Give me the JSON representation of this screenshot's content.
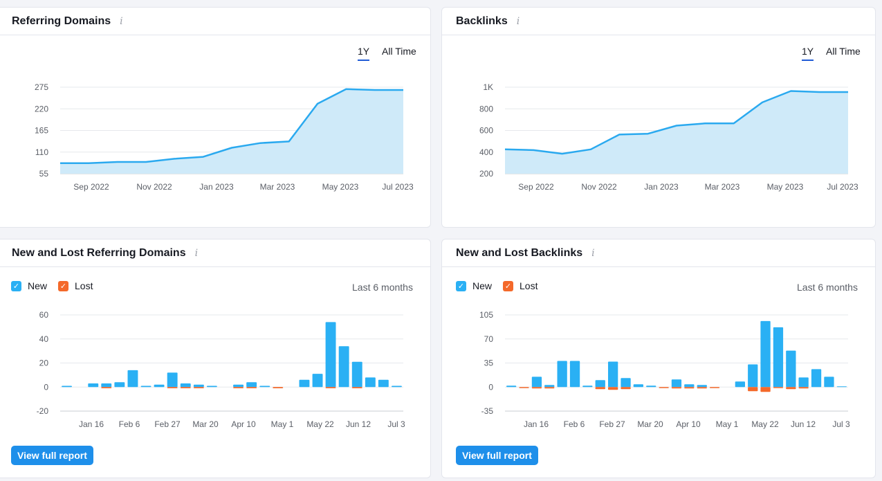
{
  "cards": {
    "referring_domains": {
      "title": "Referring Domains",
      "period_options": [
        "1Y",
        "All Time"
      ],
      "active_period": "1Y"
    },
    "backlinks": {
      "title": "Backlinks",
      "period_options": [
        "1Y",
        "All Time"
      ],
      "active_period": "1Y"
    },
    "new_lost_domains": {
      "title": "New and Lost Referring Domains",
      "legend_new": "New",
      "legend_lost": "Lost",
      "range": "Last 6 months",
      "button": "View full report"
    },
    "new_lost_backlinks": {
      "title": "New and Lost Backlinks",
      "legend_new": "New",
      "legend_lost": "Lost",
      "range": "Last 6 months",
      "button": "View full report"
    }
  },
  "icons": {
    "info": "info-icon",
    "check": "checkbox-checked-icon"
  },
  "colors": {
    "line": "#2aa9ef",
    "area": "#cfeaf9",
    "new": "#2ab0f4",
    "lost": "#f4692a",
    "button": "#1e8fea",
    "active_tab": "#1f5bd6"
  },
  "chart_data": [
    {
      "type": "area",
      "title": "Referring Domains",
      "x": [
        "2022-07",
        "2022-08",
        "2022-09",
        "2022-10",
        "2022-11",
        "2022-12",
        "2023-01",
        "2023-02",
        "2023-03",
        "2023-04",
        "2023-05",
        "2023-06",
        "2023-07"
      ],
      "values": [
        82,
        82,
        85,
        85,
        93,
        98,
        121,
        133,
        137,
        233,
        270,
        268,
        268
      ],
      "x_tick_labels": [
        "Sep 2022",
        "Nov 2022",
        "Jan 2023",
        "Mar 2023",
        "May 2023",
        "Jul 2023"
      ],
      "y_ticks": [
        "55",
        "110",
        "165",
        "220",
        "275"
      ],
      "ylim": [
        55,
        275
      ],
      "grid": true
    },
    {
      "type": "area",
      "title": "Backlinks",
      "x": [
        "2022-07",
        "2022-08",
        "2022-09",
        "2022-10",
        "2022-11",
        "2022-12",
        "2023-01",
        "2023-02",
        "2023-03",
        "2023-04",
        "2023-05",
        "2023-06",
        "2023-07"
      ],
      "values": [
        425,
        418,
        385,
        425,
        562,
        570,
        645,
        665,
        665,
        860,
        965,
        955,
        955
      ],
      "x_tick_labels": [
        "Sep 2022",
        "Nov 2022",
        "Jan 2023",
        "Mar 2023",
        "May 2023",
        "Jul 2023"
      ],
      "y_ticks": [
        "200",
        "400",
        "600",
        "800",
        "1K"
      ],
      "ylim": [
        200,
        1000
      ],
      "grid": true
    },
    {
      "type": "bar",
      "title": "New and Lost Referring Domains",
      "series_names": [
        "New",
        "Lost"
      ],
      "new": [
        1,
        0,
        3,
        3,
        4,
        14,
        1,
        2,
        12,
        3,
        2,
        1,
        0,
        2,
        4,
        1,
        0,
        0,
        6,
        11,
        54,
        34,
        21,
        8,
        6,
        1
      ],
      "lost": [
        0,
        0,
        0,
        -1,
        0,
        0,
        0,
        0,
        -1,
        -1,
        -1,
        0,
        0,
        -1,
        -1,
        0,
        -1,
        0,
        0,
        0,
        -1,
        0,
        -1,
        0,
        0,
        0
      ],
      "x_tick_labels": [
        "Jan 16",
        "Feb 6",
        "Feb 27",
        "Mar 20",
        "Apr 10",
        "May 1",
        "May 22",
        "Jun 12",
        "Jul 3"
      ],
      "y_ticks": [
        "-20",
        "0",
        "20",
        "40",
        "60"
      ],
      "ylim": [
        -20,
        60
      ],
      "grid": true
    },
    {
      "type": "bar",
      "title": "New and Lost Backlinks",
      "series_names": [
        "New",
        "Lost"
      ],
      "new": [
        2,
        0,
        15,
        3,
        38,
        38,
        2,
        10,
        37,
        13,
        4,
        2,
        0,
        11,
        4,
        3,
        0,
        0,
        8,
        33,
        96,
        87,
        53,
        14,
        26,
        15,
        1
      ],
      "lost": [
        0,
        -1,
        -2,
        -2,
        0,
        0,
        0,
        -3,
        -4,
        -3,
        0,
        0,
        -1,
        -2,
        -2,
        -2,
        -1,
        0,
        0,
        -6,
        -7,
        -1,
        -3,
        -2,
        0,
        0,
        0
      ],
      "x_tick_labels": [
        "Jan 16",
        "Feb 6",
        "Feb 27",
        "Mar 20",
        "Apr 10",
        "May 1",
        "May 22",
        "Jun 12",
        "Jul 3"
      ],
      "y_ticks": [
        "-35",
        "0",
        "35",
        "70",
        "105"
      ],
      "ylim": [
        -35,
        105
      ],
      "grid": true
    }
  ]
}
